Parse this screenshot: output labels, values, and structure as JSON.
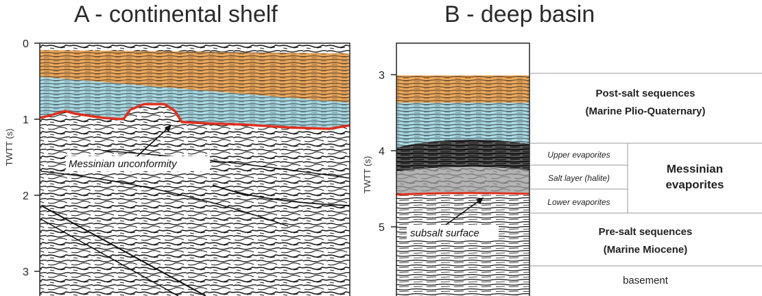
{
  "panel_a": {
    "title": "A - continental shelf",
    "axis_label": "TWTT (s)",
    "ticks": [
      "0",
      "1",
      "2",
      "3"
    ],
    "annotation": "Messinian unconformity"
  },
  "panel_b": {
    "title": "B - deep basin",
    "axis_label": "TWTT (s)",
    "ticks": [
      "3",
      "4",
      "5"
    ],
    "annotation": "subsalt surface"
  },
  "stratigraphy": {
    "post_salt_line1": "Post-salt sequences",
    "post_salt_line2": "(Marine Plio-Quaternary)",
    "upper_evaporites": "Upper evaporites",
    "salt_layer": "Salt layer (halite)",
    "lower_evaporites": "Lower evaporites",
    "messinian_line1": "Messinian",
    "messinian_line2": "evaporites",
    "pre_salt_line1": "Pre-salt sequences",
    "pre_salt_line2": "(Marine Miocene)",
    "basement": "basement"
  },
  "colors": {
    "post_salt_orange": "#f0a95a",
    "blue_layer": "#a9dbe6",
    "evaporite_dark": "#5a5a5a",
    "evaporite_mid": "#9a9a9a",
    "horizon_red": "#e0301e"
  }
}
